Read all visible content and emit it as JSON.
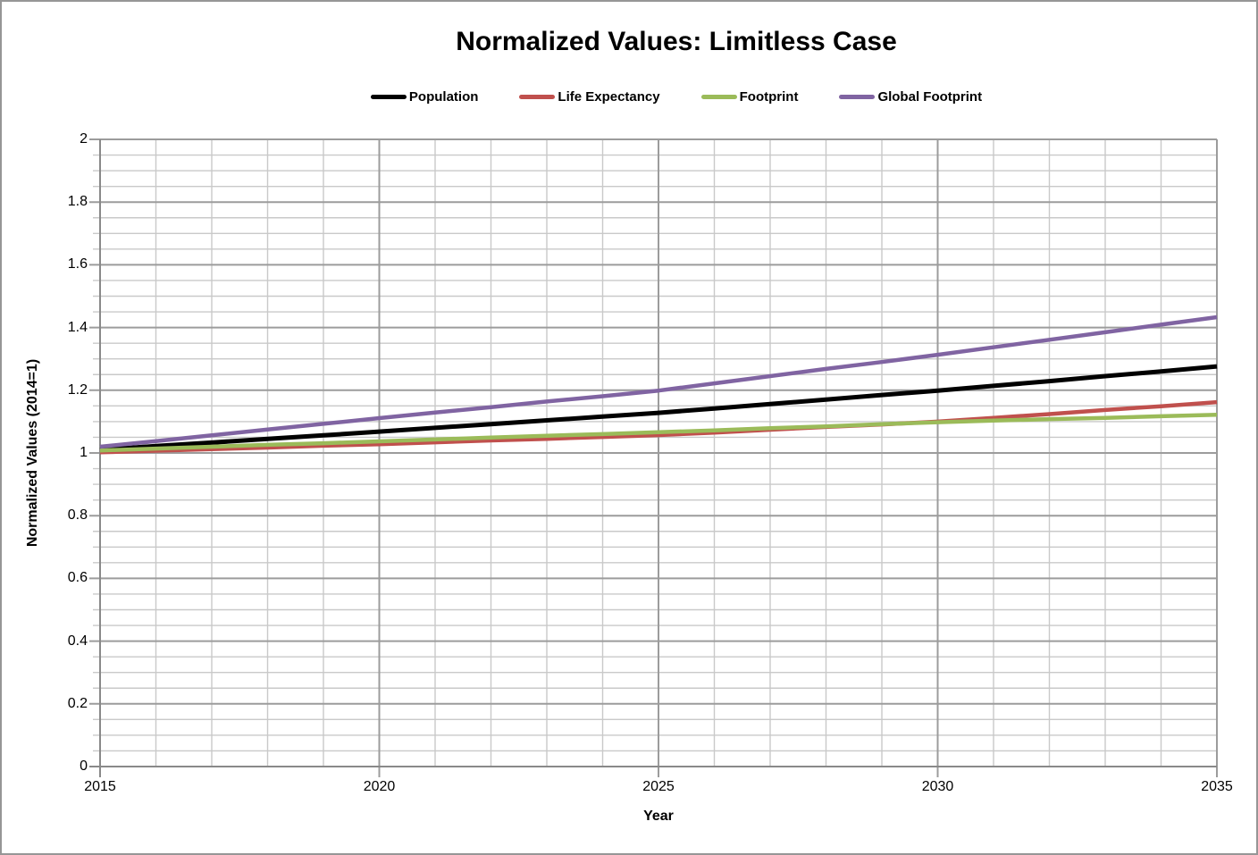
{
  "chart_data": {
    "type": "line",
    "title": "Normalized Values: Limitless Case",
    "xlabel": "Year",
    "ylabel": "Normalized Values (2014=1)",
    "x_range": [
      2015,
      2035
    ],
    "y_range": [
      0,
      2
    ],
    "x_major_ticks": [
      2015,
      2020,
      2025,
      2030,
      2035
    ],
    "x_tick_labels": [
      "2015",
      "2020",
      "2025",
      "2030",
      "2035"
    ],
    "y_major_ticks": [
      0,
      0.2,
      0.4,
      0.6,
      0.8,
      1,
      1.2,
      1.4,
      1.6,
      1.8,
      2
    ],
    "y_tick_labels": [
      "0",
      "0.2",
      "0.4",
      "0.6",
      "0.8",
      "1",
      "1.2",
      "1.4",
      "1.6",
      "1.8",
      "2"
    ],
    "x_minor_step": 1,
    "y_minor_step": 0.05,
    "legend_position": "top",
    "grid": "on",
    "colors": {
      "minor_grid": "#C9C9C9",
      "major_grid": "#9C9C9C",
      "axis": "#898989",
      "text": "#000000"
    },
    "x": [
      2015,
      2016,
      2017,
      2018,
      2019,
      2020,
      2021,
      2022,
      2023,
      2024,
      2025,
      2026,
      2027,
      2028,
      2029,
      2030,
      2031,
      2032,
      2033,
      2034,
      2035
    ],
    "series": [
      {
        "name": "Population",
        "color": "#000000",
        "values": [
          1.01,
          1.022,
          1.033,
          1.045,
          1.056,
          1.068,
          1.08,
          1.092,
          1.104,
          1.116,
          1.128,
          1.142,
          1.156,
          1.17,
          1.185,
          1.199,
          1.214,
          1.229,
          1.245,
          1.26,
          1.276
        ]
      },
      {
        "name": "Life Expectancy",
        "color": "#C0504D",
        "values": [
          1.002,
          1.007,
          1.012,
          1.017,
          1.023,
          1.028,
          1.034,
          1.04,
          1.045,
          1.051,
          1.057,
          1.065,
          1.074,
          1.083,
          1.091,
          1.1,
          1.112,
          1.124,
          1.137,
          1.149,
          1.162
        ]
      },
      {
        "name": "Footprint",
        "color": "#9BBB59",
        "values": [
          1.008,
          1.014,
          1.02,
          1.026,
          1.031,
          1.037,
          1.043,
          1.049,
          1.055,
          1.06,
          1.066,
          1.072,
          1.079,
          1.085,
          1.092,
          1.098,
          1.103,
          1.108,
          1.112,
          1.117,
          1.122
        ]
      },
      {
        "name": "Global Footprint",
        "color": "#8064A2",
        "values": [
          1.02,
          1.038,
          1.056,
          1.075,
          1.093,
          1.111,
          1.129,
          1.146,
          1.164,
          1.181,
          1.199,
          1.222,
          1.245,
          1.268,
          1.29,
          1.313,
          1.337,
          1.361,
          1.385,
          1.409,
          1.433
        ]
      }
    ]
  }
}
